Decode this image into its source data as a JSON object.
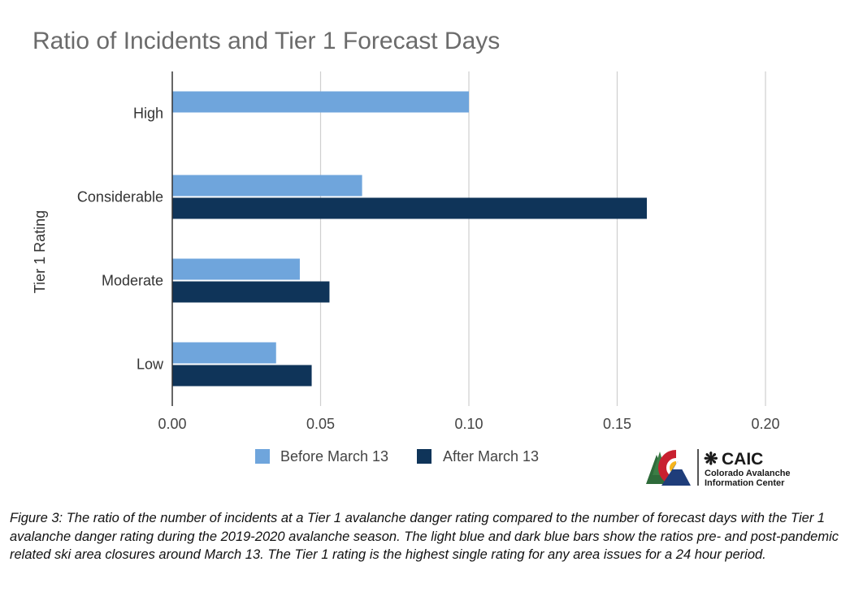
{
  "chart_data": {
    "type": "bar",
    "orientation": "horizontal",
    "title": "Ratio of Incidents and Tier 1 Forecast Days",
    "xlabel": "",
    "ylabel": "Tier 1 Rating",
    "categories": [
      "High",
      "Considerable",
      "Moderate",
      "Low"
    ],
    "series": [
      {
        "name": "Before March 13",
        "color": "#6fa5dc",
        "values": [
          0.1,
          0.064,
          0.043,
          0.035
        ]
      },
      {
        "name": "After March 13",
        "color": "#0f3459",
        "values": [
          null,
          0.16,
          0.053,
          0.047
        ]
      }
    ],
    "xlim": [
      0,
      0.2
    ],
    "xticks": [
      0,
      0.05,
      0.1,
      0.15,
      0.2
    ],
    "xtick_labels": [
      "0.00",
      "0.05",
      "0.10",
      "0.15",
      "0.20"
    ],
    "grid": true,
    "legend_position": "bottom"
  },
  "logo": {
    "name": "CAIC",
    "line1": "Colorado Avalanche",
    "line2": "Information Center",
    "snowflake_glyph": "❋"
  },
  "caption": "Figure 3: The ratio of the number of incidents at a Tier 1 avalanche danger rating compared to the number of forecast days with the Tier 1 avalanche danger rating during the 2019-2020 avalanche season. The light blue and dark blue bars show the ratios pre- and post-pandemic related ski area closures around March 13. The Tier 1 rating is the highest single rating for any area issues for a 24 hour period.",
  "colors": {
    "grid": "#cfcfcf",
    "axis": "#333333",
    "logo_red": "#c8202f",
    "logo_blue": "#1f3d7a",
    "logo_yellow": "#f6b51c",
    "logo_green": "#2e6b3a"
  }
}
